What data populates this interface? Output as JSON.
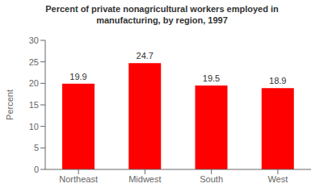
{
  "chart_data": {
    "type": "bar",
    "title": "Percent of private nonagricultural workers employed in\nmanufacturing, by region, 1997",
    "categories": [
      "Northeast",
      "Midwest",
      "South",
      "West"
    ],
    "values": [
      19.9,
      24.7,
      19.5,
      18.9
    ],
    "color": "#ff0000",
    "ylabel": "Percent",
    "ylim": [
      0,
      30
    ],
    "yticks": [
      0,
      5,
      10,
      15,
      20,
      25,
      30
    ],
    "grid": false,
    "data_labels": true
  }
}
